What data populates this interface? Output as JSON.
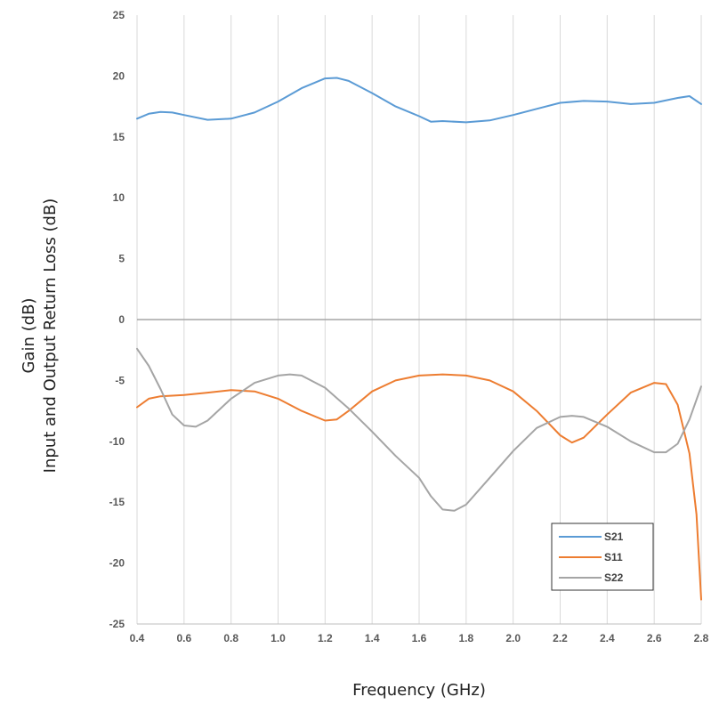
{
  "chart_data": {
    "type": "line",
    "title": "",
    "xlabel": "Frequency (GHz)",
    "ylabel_lines": [
      "Gain (dB)",
      "Input and Output Return Loss (dB)"
    ],
    "xlim": [
      0.4,
      2.8
    ],
    "ylim": [
      -25,
      25
    ],
    "x_ticks": [
      "0.4",
      "0.6",
      "0.8",
      "1.0",
      "1.2",
      "1.4",
      "1.6",
      "1.8",
      "2.0",
      "2.2",
      "2.4",
      "2.6",
      "2.8"
    ],
    "y_ticks": [
      "25",
      "20",
      "15",
      "10",
      "5",
      "0",
      "-5",
      "-10",
      "-15",
      "-20",
      "-25"
    ],
    "x_tick_values": [
      0.4,
      0.6,
      0.8,
      1.0,
      1.2,
      1.4,
      1.6,
      1.8,
      2.0,
      2.2,
      2.4,
      2.6,
      2.8
    ],
    "y_tick_values": [
      25,
      20,
      15,
      10,
      5,
      0,
      -5,
      -10,
      -15,
      -20,
      -25
    ],
    "grid": {
      "vertical": true,
      "horizontal": false
    },
    "zero_line": true,
    "legend": {
      "position": "bottom-right"
    },
    "series": [
      {
        "name": "S21",
        "color": "#5B9BD5",
        "points": [
          [
            0.4,
            16.5
          ],
          [
            0.45,
            16.9
          ],
          [
            0.5,
            17.05
          ],
          [
            0.55,
            17.0
          ],
          [
            0.6,
            16.8
          ],
          [
            0.7,
            16.4
          ],
          [
            0.8,
            16.5
          ],
          [
            0.9,
            17.0
          ],
          [
            1.0,
            17.9
          ],
          [
            1.1,
            19.0
          ],
          [
            1.2,
            19.8
          ],
          [
            1.25,
            19.85
          ],
          [
            1.3,
            19.6
          ],
          [
            1.4,
            18.6
          ],
          [
            1.5,
            17.5
          ],
          [
            1.6,
            16.7
          ],
          [
            1.65,
            16.25
          ],
          [
            1.7,
            16.3
          ],
          [
            1.8,
            16.2
          ],
          [
            1.9,
            16.35
          ],
          [
            2.0,
            16.8
          ],
          [
            2.1,
            17.3
          ],
          [
            2.2,
            17.8
          ],
          [
            2.3,
            17.95
          ],
          [
            2.4,
            17.9
          ],
          [
            2.5,
            17.7
          ],
          [
            2.6,
            17.8
          ],
          [
            2.7,
            18.2
          ],
          [
            2.75,
            18.35
          ],
          [
            2.8,
            17.7
          ]
        ]
      },
      {
        "name": "S11",
        "color": "#ED7D31",
        "points": [
          [
            0.4,
            -7.2
          ],
          [
            0.45,
            -6.5
          ],
          [
            0.5,
            -6.3
          ],
          [
            0.6,
            -6.2
          ],
          [
            0.7,
            -6.0
          ],
          [
            0.8,
            -5.8
          ],
          [
            0.9,
            -5.9
          ],
          [
            1.0,
            -6.5
          ],
          [
            1.1,
            -7.5
          ],
          [
            1.2,
            -8.3
          ],
          [
            1.25,
            -8.2
          ],
          [
            1.3,
            -7.5
          ],
          [
            1.4,
            -5.9
          ],
          [
            1.5,
            -5.0
          ],
          [
            1.6,
            -4.6
          ],
          [
            1.7,
            -4.5
          ],
          [
            1.8,
            -4.6
          ],
          [
            1.9,
            -5.0
          ],
          [
            2.0,
            -5.9
          ],
          [
            2.1,
            -7.5
          ],
          [
            2.2,
            -9.5
          ],
          [
            2.25,
            -10.1
          ],
          [
            2.3,
            -9.7
          ],
          [
            2.4,
            -7.8
          ],
          [
            2.5,
            -6.0
          ],
          [
            2.6,
            -5.2
          ],
          [
            2.65,
            -5.3
          ],
          [
            2.7,
            -7.0
          ],
          [
            2.75,
            -11.0
          ],
          [
            2.78,
            -16.0
          ],
          [
            2.8,
            -23.0
          ]
        ]
      },
      {
        "name": "S22",
        "color": "#A5A5A5",
        "points": [
          [
            0.4,
            -2.4
          ],
          [
            0.45,
            -3.8
          ],
          [
            0.5,
            -5.7
          ],
          [
            0.55,
            -7.8
          ],
          [
            0.6,
            -8.7
          ],
          [
            0.65,
            -8.8
          ],
          [
            0.7,
            -8.3
          ],
          [
            0.8,
            -6.5
          ],
          [
            0.9,
            -5.2
          ],
          [
            1.0,
            -4.6
          ],
          [
            1.05,
            -4.5
          ],
          [
            1.1,
            -4.6
          ],
          [
            1.2,
            -5.6
          ],
          [
            1.3,
            -7.3
          ],
          [
            1.4,
            -9.2
          ],
          [
            1.5,
            -11.2
          ],
          [
            1.6,
            -13.0
          ],
          [
            1.65,
            -14.5
          ],
          [
            1.7,
            -15.6
          ],
          [
            1.75,
            -15.7
          ],
          [
            1.8,
            -15.2
          ],
          [
            1.9,
            -13.0
          ],
          [
            2.0,
            -10.8
          ],
          [
            2.1,
            -8.9
          ],
          [
            2.2,
            -8.0
          ],
          [
            2.25,
            -7.9
          ],
          [
            2.3,
            -8.0
          ],
          [
            2.4,
            -8.8
          ],
          [
            2.5,
            -10.0
          ],
          [
            2.6,
            -10.9
          ],
          [
            2.65,
            -10.9
          ],
          [
            2.7,
            -10.2
          ],
          [
            2.75,
            -8.2
          ],
          [
            2.8,
            -5.5
          ]
        ]
      }
    ]
  }
}
